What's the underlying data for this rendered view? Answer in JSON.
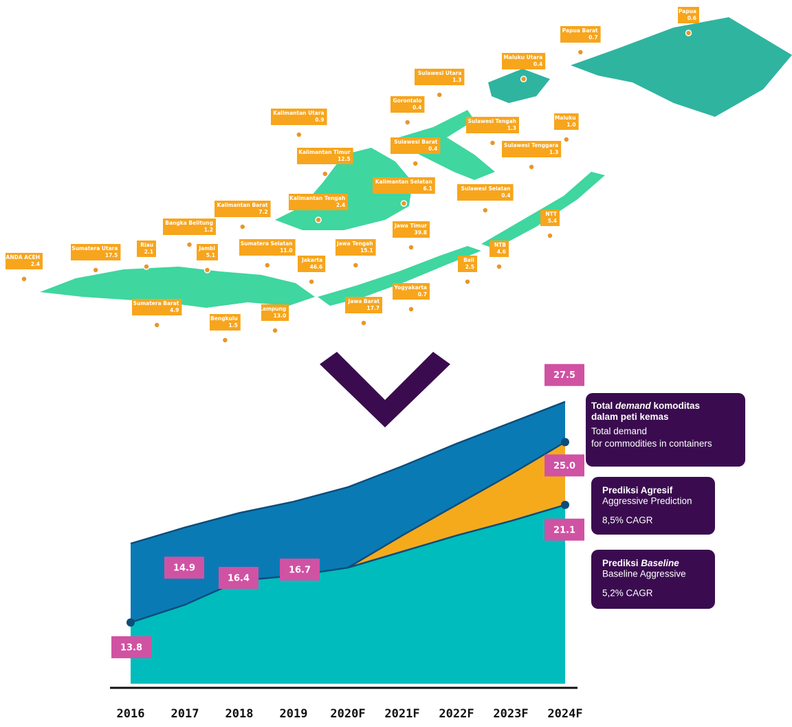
{
  "map": {
    "regions": [
      {
        "name": "Papua",
        "value": "0.6"
      },
      {
        "name": "Papua Barat",
        "value": "0.7"
      },
      {
        "name": "Maluku Utara",
        "value": "0.4"
      },
      {
        "name": "Sulawesi Utara",
        "value": "1.3"
      },
      {
        "name": "Gorontalo",
        "value": "0.4"
      },
      {
        "name": "Kalimantan Utara",
        "value": "0.9"
      },
      {
        "name": "Sulawesi Tengah",
        "value": "1.3"
      },
      {
        "name": "Maluku",
        "value": "1.0"
      },
      {
        "name": "Sulawesi Barat",
        "value": "0.4"
      },
      {
        "name": "Sulawesi Tenggara",
        "value": "1.3"
      },
      {
        "name": "Kalimantan Timur",
        "value": "12.5"
      },
      {
        "name": "Kalimantan Selatan",
        "value": "6.1"
      },
      {
        "name": "Sulawesi Selatan",
        "value": "0.4"
      },
      {
        "name": "Kalimantan Tengah",
        "value": "2.4"
      },
      {
        "name": "Kalimantan Barat",
        "value": "7.2"
      },
      {
        "name": "NTT",
        "value": "5.4"
      },
      {
        "name": "Bangka Belitung",
        "value": "1.2"
      },
      {
        "name": "Jawa Timur",
        "value": "39.8"
      },
      {
        "name": "NTB",
        "value": "4.6"
      },
      {
        "name": "Sumatera Selatan",
        "value": "11.0"
      },
      {
        "name": "Jawa Tengah",
        "value": "15.1"
      },
      {
        "name": "Riau",
        "value": "2.1"
      },
      {
        "name": "Jambi",
        "value": "5.1"
      },
      {
        "name": "Sumatera Utara",
        "value": "17.5"
      },
      {
        "name": "BANDA ACEH",
        "value": "2.4"
      },
      {
        "name": "Jakarta",
        "value": "46.6"
      },
      {
        "name": "Bali",
        "value": "2.5"
      },
      {
        "name": "Yogyakarta",
        "value": "0.7"
      },
      {
        "name": "Sumatera Barat",
        "value": "4.9"
      },
      {
        "name": "Jawa Barat",
        "value": "17.7"
      },
      {
        "name": "Lampung",
        "value": "13.0"
      },
      {
        "name": "Bengkulu",
        "value": "1.5"
      }
    ]
  },
  "chart_data": {
    "type": "area",
    "categories": [
      "2016",
      "2017",
      "2018",
      "2019",
      "2020F",
      "2021F",
      "2022F",
      "2023F",
      "2024F"
    ],
    "ylim": [
      10,
      28
    ],
    "series": [
      {
        "name": "Total demand for commodities in containers",
        "label_id": [
          {
            "text": "Total ",
            "italic": false
          },
          {
            "text": "demand",
            "italic": true
          },
          {
            "text": " komoditas dalam peti kemas",
            "italic": false
          }
        ],
        "color": "#0a7ab5",
        "values": [
          18.7,
          19.7,
          20.6,
          21.3,
          22.2,
          23.5,
          24.9,
          26.2,
          27.5
        ],
        "value_labels": [
          null,
          null,
          null,
          null,
          null,
          null,
          null,
          null,
          "27.5"
        ]
      },
      {
        "name": "Aggressive Prediction",
        "label_id": [
          {
            "text": "Prediksi Agresif",
            "italic": false
          }
        ],
        "cagr": "8,5% CAGR",
        "color": "#f5aa1c",
        "values": [
          null,
          null,
          null,
          null,
          17.2,
          19.2,
          21.1,
          23.0,
          25.0
        ],
        "value_labels": [
          null,
          null,
          null,
          null,
          null,
          null,
          null,
          null,
          "25.0"
        ]
      },
      {
        "name": "Baseline Aggressive",
        "label_id": [
          {
            "text": "Prediksi ",
            "italic": false
          },
          {
            "text": "Baseline",
            "italic": true
          }
        ],
        "cagr": "5,2% CAGR",
        "color": "#00bcbc",
        "values": [
          13.8,
          14.9,
          16.4,
          16.7,
          17.2,
          18.2,
          19.2,
          20.1,
          21.1
        ],
        "value_labels": [
          "13.8",
          "14.9",
          "16.4",
          "16.7",
          null,
          null,
          null,
          null,
          "21.1"
        ]
      }
    ]
  }
}
